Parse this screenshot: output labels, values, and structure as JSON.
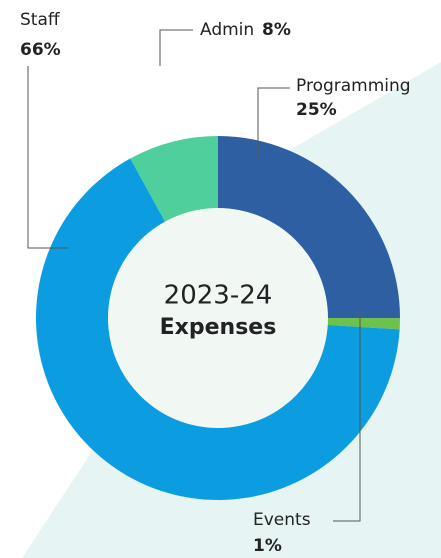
{
  "chart_data": {
    "type": "donut",
    "title": "2023-24",
    "subtitle": "Expenses",
    "categories": [
      "Programming",
      "Events",
      "Staff",
      "Admin"
    ],
    "values": [
      25,
      1,
      66,
      8
    ],
    "value_labels": [
      "25%",
      "1%",
      "66%",
      "8%"
    ],
    "colors": [
      "#2e5fa3",
      "#6cc24a",
      "#0b9de0",
      "#4fcf9b"
    ]
  }
}
